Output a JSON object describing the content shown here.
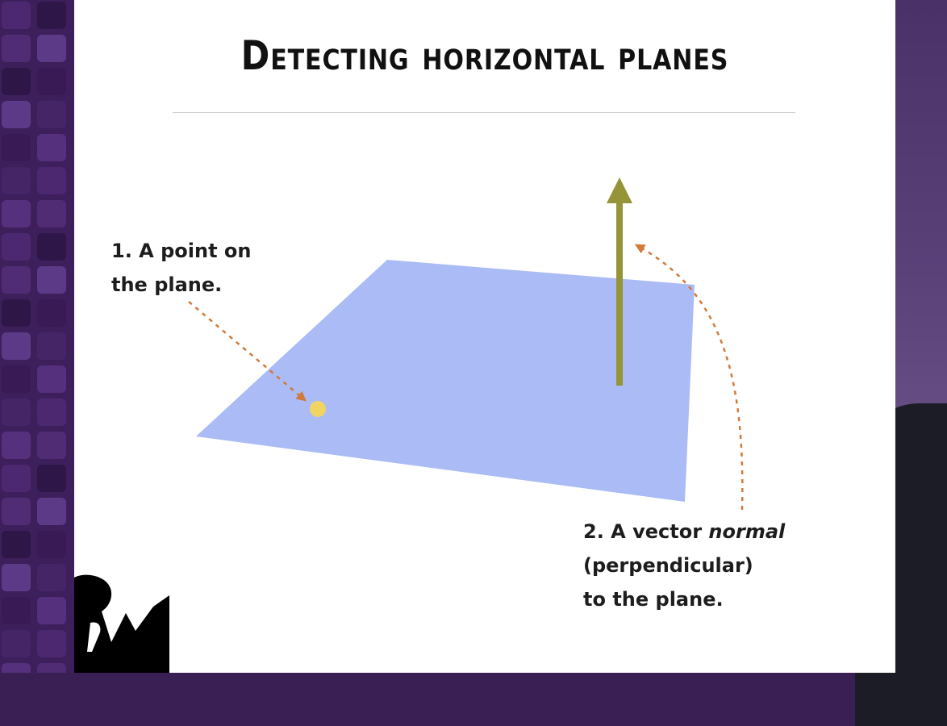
{
  "slide": {
    "title": "Detecting horizontal planes",
    "label_point": {
      "line1": "1. A point on",
      "line2": "the plane."
    },
    "label_normal": {
      "line1_prefix": "2. A vector ",
      "line1_emphasis": "normal",
      "line2": "(perpendicular)",
      "line3": "to the plane."
    }
  },
  "colors": {
    "plane": "#aabbf6",
    "normal_vector": "#959436",
    "point": "#f1d562",
    "dashed_arrows": "#d17a3b",
    "left_background": "#3d1f5c"
  },
  "icons": {
    "logo": "rw-logo"
  }
}
